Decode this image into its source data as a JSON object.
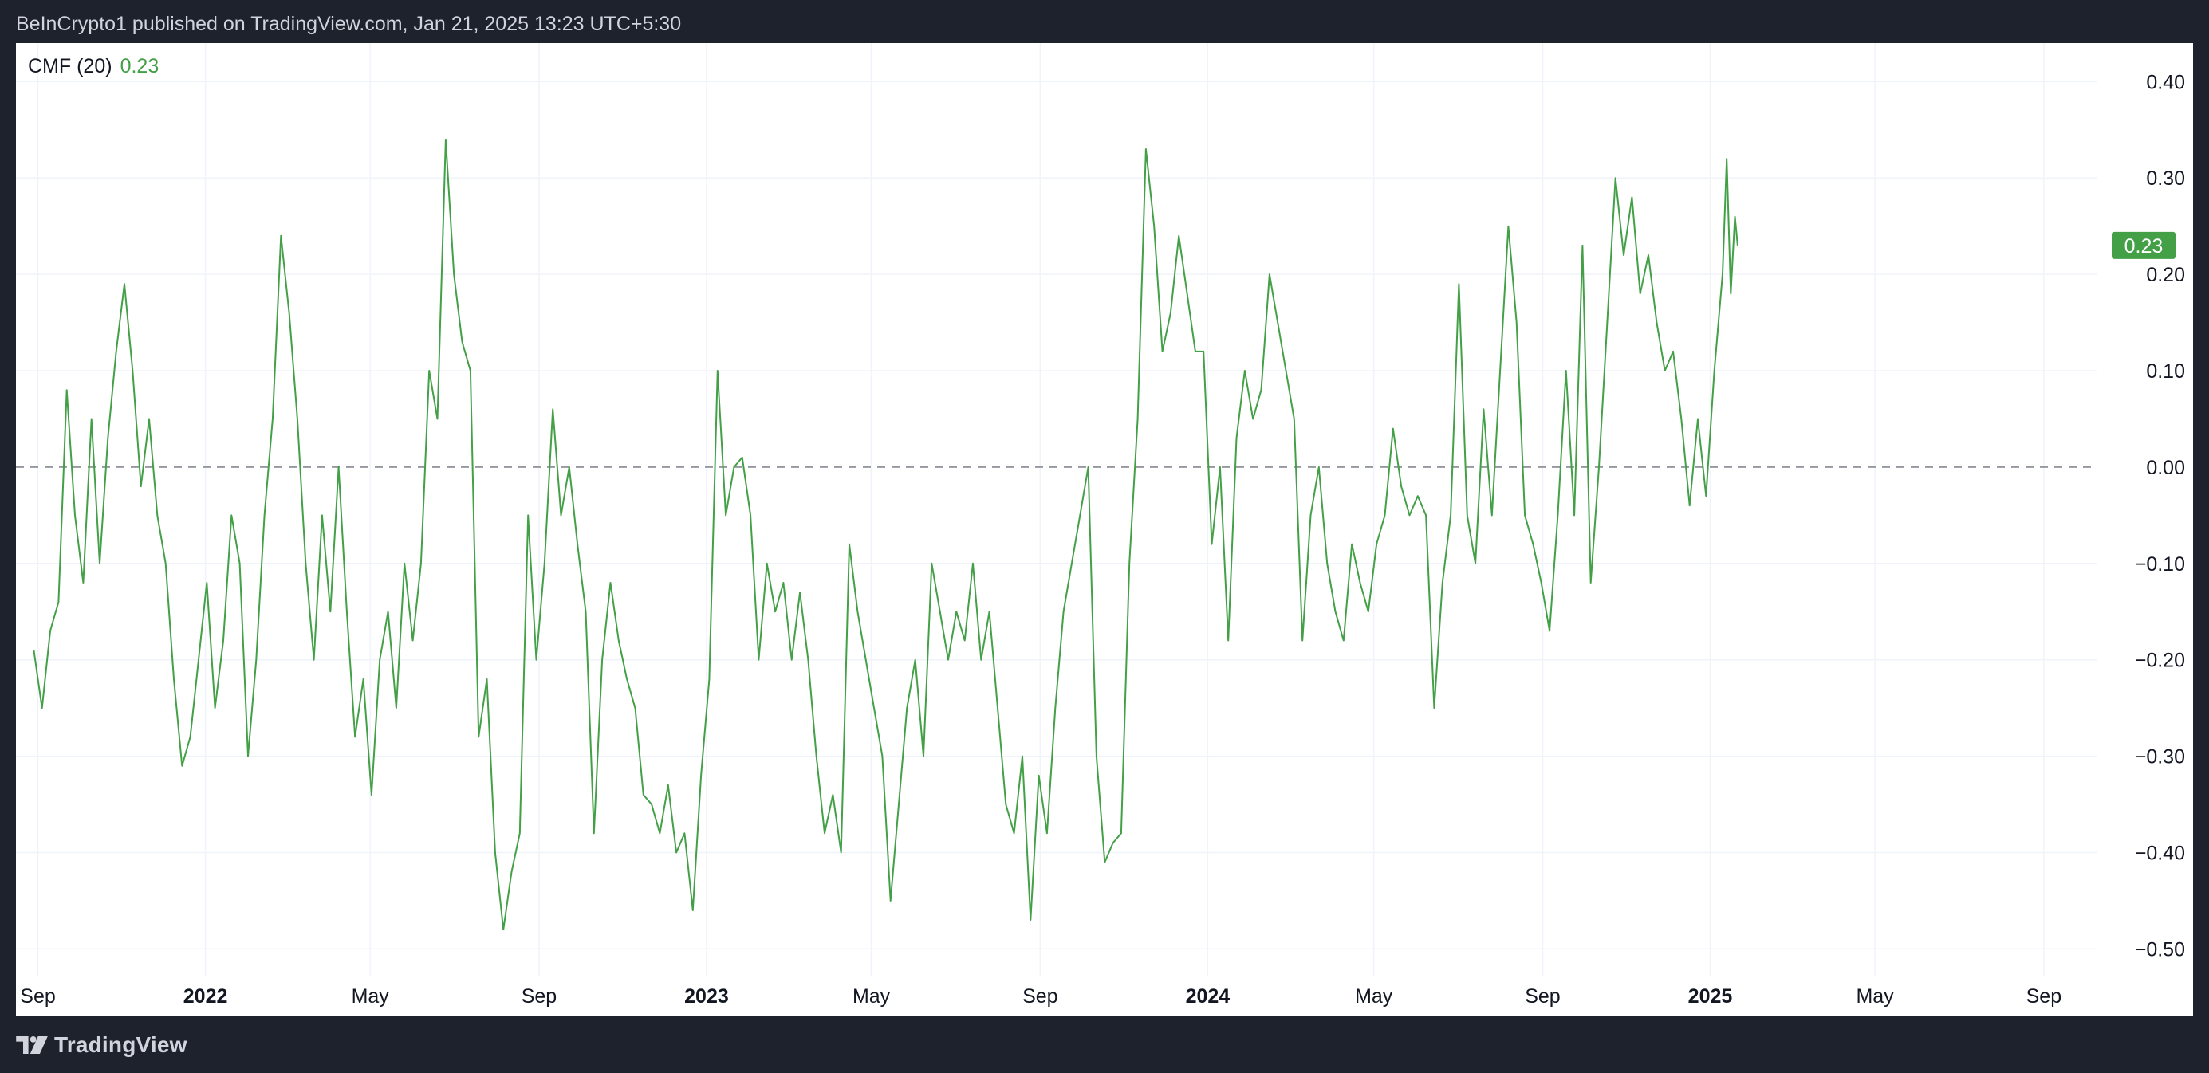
{
  "header": {
    "publish_text": "BeInCrypto1 published on TradingView.com, Jan 21, 2025 13:23 UTC+5:30"
  },
  "footer": {
    "brand_icon": "tradingview-logo-icon",
    "brand_name": "TradingView"
  },
  "colors": {
    "background": "#1e222d",
    "panel": "#ffffff",
    "series": "#43a047",
    "grid": "#f0f3fa",
    "zero_line": "#9598a1"
  },
  "chart_data": {
    "type": "line",
    "indicator_label": "CMF (20)",
    "current_value": 0.23,
    "current_value_label": "0.23",
    "zero_line": {
      "value": 0.0,
      "style": "dashed"
    },
    "grid": true,
    "y_axis_position": "right",
    "ylim": [
      -0.57,
      0.44
    ],
    "xlim": [
      "2021-08-16",
      "2025-10-10"
    ],
    "y_ticks": [
      "0.40",
      "0.30",
      "0.20",
      "0.10",
      "0.00",
      "−0.10",
      "−0.20",
      "−0.30",
      "−0.40",
      "−0.50"
    ],
    "x_ticks": [
      {
        "date": "2021-09-01",
        "label": "Sep",
        "year": false
      },
      {
        "date": "2022-01-01",
        "label": "2022",
        "year": true
      },
      {
        "date": "2022-05-01",
        "label": "May",
        "year": false
      },
      {
        "date": "2022-09-01",
        "label": "Sep",
        "year": false
      },
      {
        "date": "2023-01-01",
        "label": "2023",
        "year": true
      },
      {
        "date": "2023-05-01",
        "label": "May",
        "year": false
      },
      {
        "date": "2023-09-01",
        "label": "Sep",
        "year": false
      },
      {
        "date": "2024-01-01",
        "label": "2024",
        "year": true
      },
      {
        "date": "2024-05-01",
        "label": "May",
        "year": false
      },
      {
        "date": "2024-09-01",
        "label": "Sep",
        "year": false
      },
      {
        "date": "2025-01-01",
        "label": "2025",
        "year": true
      },
      {
        "date": "2025-05-01",
        "label": "May",
        "year": false
      },
      {
        "date": "2025-09-01",
        "label": "Sep",
        "year": false
      }
    ],
    "series": [
      {
        "points": [
          [
            "2021-08-29",
            -0.19
          ],
          [
            "2021-09-04",
            -0.25
          ],
          [
            "2021-09-10",
            -0.17
          ],
          [
            "2021-09-16",
            -0.14
          ],
          [
            "2021-09-22",
            0.08
          ],
          [
            "2021-09-28",
            -0.05
          ],
          [
            "2021-10-04",
            -0.12
          ],
          [
            "2021-10-10",
            0.05
          ],
          [
            "2021-10-16",
            -0.1
          ],
          [
            "2021-10-22",
            0.03
          ],
          [
            "2021-10-28",
            0.12
          ],
          [
            "2021-11-03",
            0.19
          ],
          [
            "2021-11-09",
            0.1
          ],
          [
            "2021-11-15",
            -0.02
          ],
          [
            "2021-11-21",
            0.05
          ],
          [
            "2021-11-27",
            -0.05
          ],
          [
            "2021-12-03",
            -0.1
          ],
          [
            "2021-12-09",
            -0.22
          ],
          [
            "2021-12-15",
            -0.31
          ],
          [
            "2021-12-21",
            -0.28
          ],
          [
            "2021-12-27",
            -0.2
          ],
          [
            "2022-01-02",
            -0.12
          ],
          [
            "2022-01-08",
            -0.25
          ],
          [
            "2022-01-14",
            -0.18
          ],
          [
            "2022-01-20",
            -0.05
          ],
          [
            "2022-01-26",
            -0.1
          ],
          [
            "2022-02-01",
            -0.3
          ],
          [
            "2022-02-07",
            -0.2
          ],
          [
            "2022-02-13",
            -0.05
          ],
          [
            "2022-02-19",
            0.05
          ],
          [
            "2022-02-25",
            0.24
          ],
          [
            "2022-03-03",
            0.16
          ],
          [
            "2022-03-09",
            0.05
          ],
          [
            "2022-03-15",
            -0.1
          ],
          [
            "2022-03-21",
            -0.2
          ],
          [
            "2022-03-27",
            -0.05
          ],
          [
            "2022-04-02",
            -0.15
          ],
          [
            "2022-04-08",
            0.0
          ],
          [
            "2022-04-14",
            -0.15
          ],
          [
            "2022-04-20",
            -0.28
          ],
          [
            "2022-04-26",
            -0.22
          ],
          [
            "2022-05-02",
            -0.34
          ],
          [
            "2022-05-08",
            -0.2
          ],
          [
            "2022-05-14",
            -0.15
          ],
          [
            "2022-05-20",
            -0.25
          ],
          [
            "2022-05-26",
            -0.1
          ],
          [
            "2022-06-01",
            -0.18
          ],
          [
            "2022-06-07",
            -0.1
          ],
          [
            "2022-06-13",
            0.1
          ],
          [
            "2022-06-19",
            0.05
          ],
          [
            "2022-06-25",
            0.34
          ],
          [
            "2022-07-01",
            0.2
          ],
          [
            "2022-07-07",
            0.13
          ],
          [
            "2022-07-13",
            0.1
          ],
          [
            "2022-07-19",
            -0.28
          ],
          [
            "2022-07-25",
            -0.22
          ],
          [
            "2022-07-31",
            -0.4
          ],
          [
            "2022-08-06",
            -0.48
          ],
          [
            "2022-08-12",
            -0.42
          ],
          [
            "2022-08-18",
            -0.38
          ],
          [
            "2022-08-24",
            -0.05
          ],
          [
            "2022-08-30",
            -0.2
          ],
          [
            "2022-09-05",
            -0.1
          ],
          [
            "2022-09-11",
            0.06
          ],
          [
            "2022-09-17",
            -0.05
          ],
          [
            "2022-09-23",
            0.0
          ],
          [
            "2022-09-29",
            -0.08
          ],
          [
            "2022-10-05",
            -0.15
          ],
          [
            "2022-10-11",
            -0.38
          ],
          [
            "2022-10-17",
            -0.2
          ],
          [
            "2022-10-23",
            -0.12
          ],
          [
            "2022-10-29",
            -0.18
          ],
          [
            "2022-11-04",
            -0.22
          ],
          [
            "2022-11-10",
            -0.25
          ],
          [
            "2022-11-16",
            -0.34
          ],
          [
            "2022-11-22",
            -0.35
          ],
          [
            "2022-11-28",
            -0.38
          ],
          [
            "2022-12-04",
            -0.33
          ],
          [
            "2022-12-10",
            -0.4
          ],
          [
            "2022-12-16",
            -0.38
          ],
          [
            "2022-12-22",
            -0.46
          ],
          [
            "2022-12-28",
            -0.32
          ],
          [
            "2023-01-03",
            -0.22
          ],
          [
            "2023-01-09",
            0.1
          ],
          [
            "2023-01-15",
            -0.05
          ],
          [
            "2023-01-21",
            0.0
          ],
          [
            "2023-01-27",
            0.01
          ],
          [
            "2023-02-02",
            -0.05
          ],
          [
            "2023-02-08",
            -0.2
          ],
          [
            "2023-02-14",
            -0.1
          ],
          [
            "2023-02-20",
            -0.15
          ],
          [
            "2023-02-26",
            -0.12
          ],
          [
            "2023-03-04",
            -0.2
          ],
          [
            "2023-03-10",
            -0.13
          ],
          [
            "2023-03-16",
            -0.2
          ],
          [
            "2023-03-22",
            -0.3
          ],
          [
            "2023-03-28",
            -0.38
          ],
          [
            "2023-04-03",
            -0.34
          ],
          [
            "2023-04-09",
            -0.4
          ],
          [
            "2023-04-15",
            -0.08
          ],
          [
            "2023-04-21",
            -0.15
          ],
          [
            "2023-04-27",
            -0.2
          ],
          [
            "2023-05-03",
            -0.25
          ],
          [
            "2023-05-09",
            -0.3
          ],
          [
            "2023-05-15",
            -0.45
          ],
          [
            "2023-05-21",
            -0.35
          ],
          [
            "2023-05-27",
            -0.25
          ],
          [
            "2023-06-02",
            -0.2
          ],
          [
            "2023-06-08",
            -0.3
          ],
          [
            "2023-06-14",
            -0.1
          ],
          [
            "2023-06-20",
            -0.15
          ],
          [
            "2023-06-26",
            -0.2
          ],
          [
            "2023-07-02",
            -0.15
          ],
          [
            "2023-07-08",
            -0.18
          ],
          [
            "2023-07-14",
            -0.1
          ],
          [
            "2023-07-20",
            -0.2
          ],
          [
            "2023-07-26",
            -0.15
          ],
          [
            "2023-08-01",
            -0.25
          ],
          [
            "2023-08-07",
            -0.35
          ],
          [
            "2023-08-13",
            -0.38
          ],
          [
            "2023-08-19",
            -0.3
          ],
          [
            "2023-08-25",
            -0.47
          ],
          [
            "2023-08-31",
            -0.32
          ],
          [
            "2023-09-06",
            -0.38
          ],
          [
            "2023-09-12",
            -0.25
          ],
          [
            "2023-09-18",
            -0.15
          ],
          [
            "2023-09-24",
            -0.1
          ],
          [
            "2023-09-30",
            -0.05
          ],
          [
            "2023-10-06",
            0.0
          ],
          [
            "2023-10-12",
            -0.3
          ],
          [
            "2023-10-18",
            -0.41
          ],
          [
            "2023-10-24",
            -0.39
          ],
          [
            "2023-10-30",
            -0.38
          ],
          [
            "2023-11-05",
            -0.1
          ],
          [
            "2023-11-11",
            0.05
          ],
          [
            "2023-11-17",
            0.33
          ],
          [
            "2023-11-23",
            0.25
          ],
          [
            "2023-11-29",
            0.12
          ],
          [
            "2023-12-05",
            0.16
          ],
          [
            "2023-12-11",
            0.24
          ],
          [
            "2023-12-17",
            0.18
          ],
          [
            "2023-12-23",
            0.12
          ],
          [
            "2023-12-29",
            0.12
          ],
          [
            "2024-01-04",
            -0.08
          ],
          [
            "2024-01-10",
            0.0
          ],
          [
            "2024-01-16",
            -0.18
          ],
          [
            "2024-01-22",
            0.03
          ],
          [
            "2024-01-28",
            0.1
          ],
          [
            "2024-02-03",
            0.05
          ],
          [
            "2024-02-09",
            0.08
          ],
          [
            "2024-02-15",
            0.2
          ],
          [
            "2024-02-21",
            0.15
          ],
          [
            "2024-02-27",
            0.1
          ],
          [
            "2024-03-04",
            0.05
          ],
          [
            "2024-03-10",
            -0.18
          ],
          [
            "2024-03-16",
            -0.05
          ],
          [
            "2024-03-22",
            0.0
          ],
          [
            "2024-03-28",
            -0.1
          ],
          [
            "2024-04-03",
            -0.15
          ],
          [
            "2024-04-09",
            -0.18
          ],
          [
            "2024-04-15",
            -0.08
          ],
          [
            "2024-04-21",
            -0.12
          ],
          [
            "2024-04-27",
            -0.15
          ],
          [
            "2024-05-03",
            -0.08
          ],
          [
            "2024-05-09",
            -0.05
          ],
          [
            "2024-05-15",
            0.04
          ],
          [
            "2024-05-21",
            -0.02
          ],
          [
            "2024-05-27",
            -0.05
          ],
          [
            "2024-06-02",
            -0.03
          ],
          [
            "2024-06-08",
            -0.05
          ],
          [
            "2024-06-14",
            -0.25
          ],
          [
            "2024-06-20",
            -0.12
          ],
          [
            "2024-06-26",
            -0.05
          ],
          [
            "2024-07-02",
            0.19
          ],
          [
            "2024-07-08",
            -0.05
          ],
          [
            "2024-07-14",
            -0.1
          ],
          [
            "2024-07-20",
            0.06
          ],
          [
            "2024-07-26",
            -0.05
          ],
          [
            "2024-08-01",
            0.1
          ],
          [
            "2024-08-07",
            0.25
          ],
          [
            "2024-08-13",
            0.15
          ],
          [
            "2024-08-19",
            -0.05
          ],
          [
            "2024-08-25",
            -0.08
          ],
          [
            "2024-08-31",
            -0.12
          ],
          [
            "2024-09-06",
            -0.17
          ],
          [
            "2024-09-12",
            -0.05
          ],
          [
            "2024-09-18",
            0.1
          ],
          [
            "2024-09-24",
            -0.05
          ],
          [
            "2024-09-30",
            0.23
          ],
          [
            "2024-10-06",
            -0.12
          ],
          [
            "2024-10-12",
            0.0
          ],
          [
            "2024-10-18",
            0.15
          ],
          [
            "2024-10-24",
            0.3
          ],
          [
            "2024-10-30",
            0.22
          ],
          [
            "2024-11-05",
            0.28
          ],
          [
            "2024-11-11",
            0.18
          ],
          [
            "2024-11-17",
            0.22
          ],
          [
            "2024-11-23",
            0.15
          ],
          [
            "2024-11-29",
            0.1
          ],
          [
            "2024-12-05",
            0.12
          ],
          [
            "2024-12-11",
            0.05
          ],
          [
            "2024-12-17",
            -0.04
          ],
          [
            "2024-12-23",
            0.05
          ],
          [
            "2024-12-29",
            -0.03
          ],
          [
            "2025-01-04",
            0.1
          ],
          [
            "2025-01-10",
            0.2
          ],
          [
            "2025-01-13",
            0.32
          ],
          [
            "2025-01-16",
            0.18
          ],
          [
            "2025-01-19",
            0.26
          ],
          [
            "2025-01-21",
            0.23
          ]
        ]
      }
    ]
  }
}
